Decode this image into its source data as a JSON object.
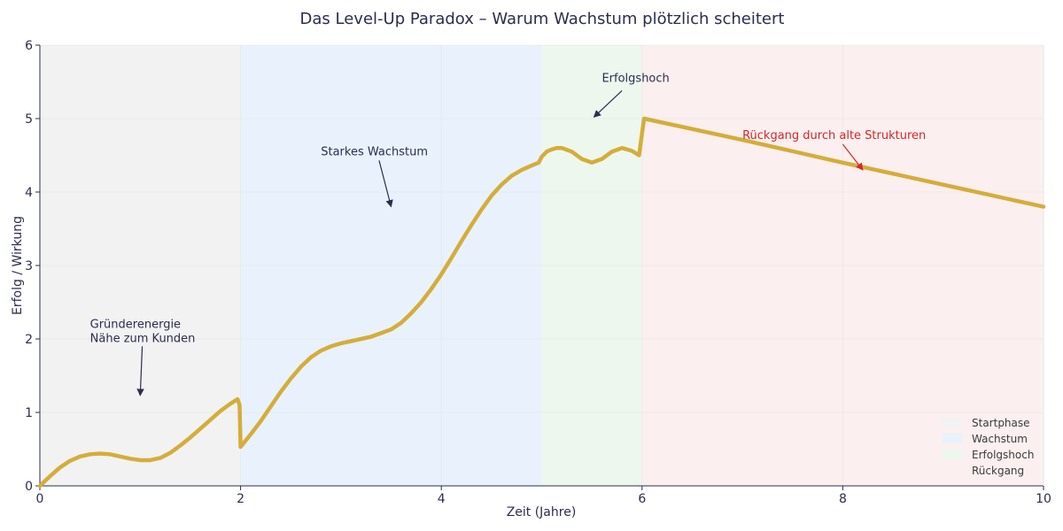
{
  "chart_data": {
    "type": "line",
    "title": "Das Level-Up Paradox – Warum Wachstum plötzlich scheitert",
    "xlabel": "Zeit (Jahre)",
    "ylabel": "Erfolg / Wirkung",
    "xlim": [
      0,
      10
    ],
    "ylim": [
      0,
      6
    ],
    "xticks": [
      0,
      2,
      4,
      6,
      8,
      10
    ],
    "yticks": [
      0,
      1,
      2,
      3,
      4,
      5,
      6
    ],
    "grid": true,
    "legend_position": "bottom-right",
    "phases": [
      {
        "name": "Startphase",
        "start": 0,
        "end": 2,
        "color": "#f2f2f2"
      },
      {
        "name": "Wachstum",
        "start": 2,
        "end": 5,
        "color": "#e9f2fc"
      },
      {
        "name": "Erfolgshoch",
        "start": 5,
        "end": 6,
        "color": "#eef7ee"
      },
      {
        "name": "Rückgang",
        "start": 6,
        "end": 10,
        "color": "#fcefef"
      }
    ],
    "series": [
      {
        "color": "#d4ad3a",
        "points": [
          [
            0,
            0
          ],
          [
            0.1,
            0.13
          ],
          [
            0.2,
            0.25
          ],
          [
            0.3,
            0.34
          ],
          [
            0.4,
            0.4
          ],
          [
            0.5,
            0.43
          ],
          [
            0.6,
            0.44
          ],
          [
            0.7,
            0.43
          ],
          [
            0.8,
            0.4
          ],
          [
            0.9,
            0.37
          ],
          [
            1.0,
            0.35
          ],
          [
            1.1,
            0.35
          ],
          [
            1.2,
            0.38
          ],
          [
            1.3,
            0.45
          ],
          [
            1.4,
            0.55
          ],
          [
            1.5,
            0.66
          ],
          [
            1.6,
            0.78
          ],
          [
            1.7,
            0.9
          ],
          [
            1.8,
            1.02
          ],
          [
            1.9,
            1.12
          ],
          [
            1.97,
            1.18
          ],
          [
            1.99,
            1.1
          ],
          [
            2.0,
            0.53
          ],
          [
            2.1,
            0.7
          ],
          [
            2.2,
            0.88
          ],
          [
            2.3,
            1.08
          ],
          [
            2.4,
            1.28
          ],
          [
            2.5,
            1.46
          ],
          [
            2.6,
            1.62
          ],
          [
            2.7,
            1.75
          ],
          [
            2.8,
            1.84
          ],
          [
            2.9,
            1.9
          ],
          [
            3.0,
            1.94
          ],
          [
            3.1,
            1.97
          ],
          [
            3.2,
            2.0
          ],
          [
            3.3,
            2.03
          ],
          [
            3.4,
            2.08
          ],
          [
            3.5,
            2.13
          ],
          [
            3.6,
            2.22
          ],
          [
            3.7,
            2.35
          ],
          [
            3.8,
            2.5
          ],
          [
            3.9,
            2.68
          ],
          [
            4.0,
            2.88
          ],
          [
            4.1,
            3.1
          ],
          [
            4.2,
            3.33
          ],
          [
            4.3,
            3.55
          ],
          [
            4.4,
            3.76
          ],
          [
            4.5,
            3.95
          ],
          [
            4.6,
            4.1
          ],
          [
            4.7,
            4.22
          ],
          [
            4.8,
            4.3
          ],
          [
            4.9,
            4.36
          ],
          [
            4.97,
            4.4
          ],
          [
            5.0,
            4.48
          ],
          [
            5.05,
            4.55
          ],
          [
            5.1,
            4.58
          ],
          [
            5.15,
            4.6
          ],
          [
            5.2,
            4.6
          ],
          [
            5.3,
            4.55
          ],
          [
            5.4,
            4.45
          ],
          [
            5.5,
            4.4
          ],
          [
            5.6,
            4.45
          ],
          [
            5.7,
            4.55
          ],
          [
            5.8,
            4.6
          ],
          [
            5.9,
            4.56
          ],
          [
            5.97,
            4.5
          ],
          [
            6.0,
            4.8
          ],
          [
            6.02,
            5.0
          ],
          [
            7.0,
            4.71
          ],
          [
            8.0,
            4.4
          ],
          [
            9.0,
            4.1
          ],
          [
            10.0,
            3.8
          ]
        ]
      }
    ],
    "annotations": [
      {
        "lines": [
          "Gründerenergie",
          "Nähe zum Kunden"
        ],
        "text_xy": [
          0.5,
          2.15
        ],
        "arrow_from": [
          1.02,
          1.9
        ],
        "arrow_to": [
          1.0,
          1.23
        ],
        "color": "#2b2d4f"
      },
      {
        "lines": [
          "Starkes Wachstum"
        ],
        "text_xy": [
          2.8,
          4.5
        ],
        "arrow_from": [
          3.38,
          4.43
        ],
        "arrow_to": [
          3.5,
          3.8
        ],
        "color": "#2b2d4f"
      },
      {
        "lines": [
          "Erfolgshoch"
        ],
        "text_xy": [
          5.6,
          5.5
        ],
        "arrow_from": [
          5.8,
          5.38
        ],
        "arrow_to": [
          5.52,
          5.02
        ],
        "color": "#2b2d4f"
      },
      {
        "lines": [
          "Rückgang durch alte Strukturen"
        ],
        "text_xy": [
          7.0,
          4.72
        ],
        "arrow_from": [
          8.0,
          4.65
        ],
        "arrow_to": [
          8.2,
          4.3
        ],
        "color": "#d62728"
      }
    ]
  }
}
